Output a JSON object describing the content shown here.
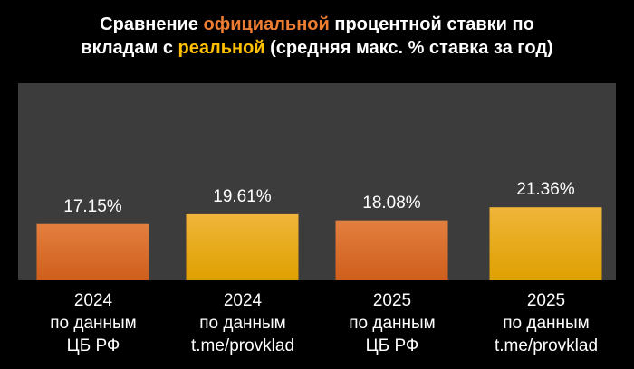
{
  "title": {
    "line1_pre": "Сравнение ",
    "line1_hl": "официальной",
    "line1_post": " процентной ставки по",
    "line2_pre": "вкладам с ",
    "line2_hl": "реальной",
    "line2_post": " (средняя макс. % ставка за год)"
  },
  "colors": {
    "orange": "#ee7d31",
    "yellow": "#ffc000",
    "plot_bg": "#3c3c3c",
    "background": "#000000"
  },
  "chart_data": {
    "type": "bar",
    "title": "Сравнение официальной процентной ставки по вкладам с реальной (средняя макс. % ставка за год)",
    "categories": [
      [
        "2024",
        "по данным",
        "ЦБ РФ"
      ],
      [
        "2024",
        "по данным",
        "t.me/provklad"
      ],
      [
        "2025",
        "по данным",
        "ЦБ РФ"
      ],
      [
        "2025",
        "по данным",
        "t.me/provklad"
      ]
    ],
    "values": [
      17.15,
      19.61,
      18.08,
      21.36
    ],
    "value_labels": [
      "17.15%",
      "19.61%",
      "18.08%",
      "21.36%"
    ],
    "bar_colors": [
      "orange",
      "yellow",
      "orange",
      "yellow"
    ],
    "ylim": [
      0,
      30
    ],
    "xlabel": "",
    "ylabel": "",
    "grid": false,
    "legend": "none"
  }
}
